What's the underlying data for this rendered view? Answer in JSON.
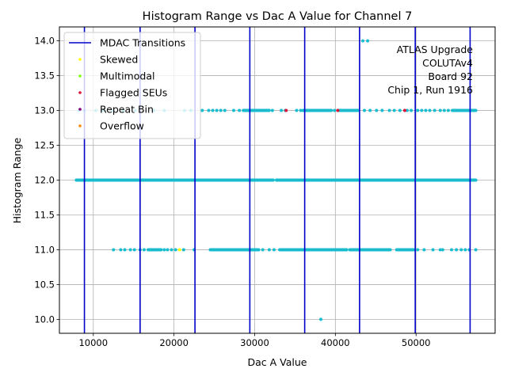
{
  "chart_data": {
    "type": "scatter",
    "title": "Histogram Range vs Dac A Value for Channel 7",
    "xlabel": "Dac A Value",
    "ylabel": "Histogram Range",
    "xlim": [
      5800,
      59800
    ],
    "ylim": [
      9.8,
      14.2
    ],
    "xticks": [
      10000,
      20000,
      30000,
      40000,
      50000
    ],
    "xtick_labels": [
      "10000",
      "20000",
      "30000",
      "40000",
      "50000"
    ],
    "yticks": [
      10.0,
      10.5,
      11.0,
      11.5,
      12.0,
      12.5,
      13.0,
      13.5,
      14.0
    ],
    "ytick_labels": [
      "10.0",
      "10.5",
      "11.0",
      "11.5",
      "12.0",
      "12.5",
      "13.0",
      "13.5",
      "14.0"
    ],
    "grid": true,
    "legend_position": "upper-left",
    "annotation_lines": [
      "ATLAS Upgrade",
      "COLUTAv4",
      "Board 92",
      "Chip 1, Run 1916"
    ],
    "annotation_position": "upper-right",
    "series": [
      {
        "name": "MDAC Transitions",
        "kind": "vline",
        "color": "#0000cc",
        "x": [
          8900,
          15800,
          22600,
          29400,
          36200,
          43000,
          49900,
          56700
        ]
      },
      {
        "name": "",
        "kind": "dense-segments",
        "color": "#17becf",
        "segments": [
          {
            "y": 12.0,
            "x_ranges": [
              [
                7900,
                32300
              ],
              [
                32700,
                57400
              ]
            ]
          },
          {
            "y": 13.0,
            "x_ranges": [
              [
                28600,
                31800
              ],
              [
                36000,
                39500
              ],
              [
                40500,
                42800
              ],
              [
                54500,
                57400
              ]
            ]
          },
          {
            "y": 11.0,
            "x_ranges": [
              [
                16800,
                18400
              ],
              [
                24500,
                30500
              ],
              [
                33100,
                41400
              ],
              [
                41800,
                46800
              ],
              [
                47600,
                49700
              ]
            ]
          }
        ]
      },
      {
        "name": "",
        "kind": "scatter",
        "color": "#17becf",
        "points": [
          {
            "x": 8200,
            "y": 13.0
          },
          {
            "x": 8900,
            "y": 13.0
          },
          {
            "x": 10300,
            "y": 13.0
          },
          {
            "x": 11200,
            "y": 13.0
          },
          {
            "x": 12400,
            "y": 13.0
          },
          {
            "x": 13700,
            "y": 13.0
          },
          {
            "x": 15200,
            "y": 13.0
          },
          {
            "x": 17500,
            "y": 13.0
          },
          {
            "x": 18800,
            "y": 13.0
          },
          {
            "x": 21300,
            "y": 13.0
          },
          {
            "x": 22100,
            "y": 13.0
          },
          {
            "x": 23500,
            "y": 13.0
          },
          {
            "x": 24300,
            "y": 13.0
          },
          {
            "x": 24800,
            "y": 13.0
          },
          {
            "x": 25300,
            "y": 13.0
          },
          {
            "x": 25800,
            "y": 13.0
          },
          {
            "x": 26300,
            "y": 13.0
          },
          {
            "x": 27400,
            "y": 13.0
          },
          {
            "x": 28100,
            "y": 13.0
          },
          {
            "x": 32200,
            "y": 13.0
          },
          {
            "x": 33300,
            "y": 13.0
          },
          {
            "x": 33800,
            "y": 13.0
          },
          {
            "x": 35200,
            "y": 13.0
          },
          {
            "x": 35700,
            "y": 13.0
          },
          {
            "x": 39900,
            "y": 13.0
          },
          {
            "x": 43600,
            "y": 13.0
          },
          {
            "x": 44300,
            "y": 13.0
          },
          {
            "x": 45100,
            "y": 13.0
          },
          {
            "x": 45800,
            "y": 13.0
          },
          {
            "x": 46700,
            "y": 13.0
          },
          {
            "x": 47300,
            "y": 13.0
          },
          {
            "x": 48000,
            "y": 13.0
          },
          {
            "x": 48900,
            "y": 13.0
          },
          {
            "x": 49400,
            "y": 13.0
          },
          {
            "x": 50200,
            "y": 13.0
          },
          {
            "x": 50700,
            "y": 13.0
          },
          {
            "x": 51200,
            "y": 13.0
          },
          {
            "x": 51700,
            "y": 13.0
          },
          {
            "x": 52300,
            "y": 13.0
          },
          {
            "x": 53000,
            "y": 13.0
          },
          {
            "x": 53500,
            "y": 13.0
          },
          {
            "x": 54000,
            "y": 13.0
          },
          {
            "x": 43400,
            "y": 14.0
          },
          {
            "x": 44000,
            "y": 14.0
          },
          {
            "x": 38200,
            "y": 10.0
          },
          {
            "x": 12500,
            "y": 11.0
          },
          {
            "x": 13400,
            "y": 11.0
          },
          {
            "x": 13900,
            "y": 11.0
          },
          {
            "x": 14600,
            "y": 11.0
          },
          {
            "x": 15100,
            "y": 11.0
          },
          {
            "x": 15800,
            "y": 11.0
          },
          {
            "x": 16300,
            "y": 11.0
          },
          {
            "x": 18800,
            "y": 11.0
          },
          {
            "x": 19200,
            "y": 11.0
          },
          {
            "x": 19700,
            "y": 11.0
          },
          {
            "x": 20200,
            "y": 11.0
          },
          {
            "x": 21200,
            "y": 11.0
          },
          {
            "x": 22500,
            "y": 11.0
          },
          {
            "x": 31000,
            "y": 11.0
          },
          {
            "x": 31800,
            "y": 11.0
          },
          {
            "x": 32400,
            "y": 11.0
          },
          {
            "x": 50200,
            "y": 11.0
          },
          {
            "x": 51000,
            "y": 11.0
          },
          {
            "x": 52100,
            "y": 11.0
          },
          {
            "x": 53000,
            "y": 11.0
          },
          {
            "x": 53300,
            "y": 11.0
          },
          {
            "x": 54400,
            "y": 11.0
          },
          {
            "x": 55000,
            "y": 11.0
          },
          {
            "x": 55600,
            "y": 11.0
          },
          {
            "x": 56100,
            "y": 11.0
          },
          {
            "x": 56600,
            "y": 11.0
          },
          {
            "x": 57400,
            "y": 11.0
          }
        ]
      },
      {
        "name": "Skewed",
        "kind": "scatter",
        "color": "#ffff00",
        "points": [
          {
            "x": 20700,
            "y": 11.0
          }
        ]
      },
      {
        "name": "Multimodal",
        "kind": "scatter",
        "color": "#7fff00",
        "points": []
      },
      {
        "name": "Flagged SEUs",
        "kind": "scatter",
        "color": "#dc143c",
        "points": [
          {
            "x": 33900,
            "y": 13.0
          },
          {
            "x": 40300,
            "y": 13.0
          },
          {
            "x": 48600,
            "y": 13.0
          }
        ]
      },
      {
        "name": "Repeat Bin",
        "kind": "scatter",
        "color": "#800080",
        "points": []
      },
      {
        "name": "Overflow",
        "kind": "scatter",
        "color": "#ff8c00",
        "points": []
      }
    ]
  }
}
